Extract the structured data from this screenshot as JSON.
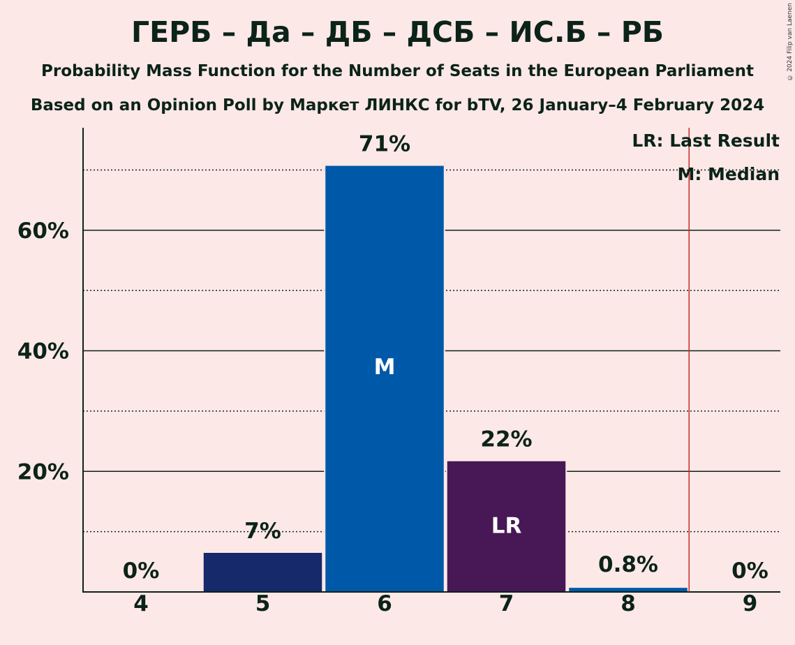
{
  "title": "ГЕРБ – Да – ДБ – ДСБ – ИС.Б – РБ",
  "subtitle": "Probability Mass Function for the Number of Seats in the European Parliament",
  "subtitle2": "Based on an Opinion Poll by Маркет ЛИНКС for bTV, 26 January–4 February 2024",
  "copyright": "© 2024 Filip van Laenen",
  "legend": {
    "last_result": "LR: Last Result",
    "median": "M: Median"
  },
  "chart_data": {
    "type": "bar",
    "categories": [
      "4",
      "5",
      "6",
      "7",
      "8",
      "9"
    ],
    "values": [
      0,
      6.6,
      70.8,
      21.8,
      0.8,
      0
    ],
    "value_labels": [
      "0%",
      "7%",
      "71%",
      "22%",
      "0.8%",
      "0%"
    ],
    "bar_colors": [
      "#15296b",
      "#15296b",
      "#0059a8",
      "#481756",
      "#0059a8",
      "#0059a8"
    ],
    "bar_marks": [
      "",
      "",
      "M",
      "LR",
      "",
      ""
    ],
    "ylim": [
      0,
      77
    ],
    "yticks": [
      20,
      40,
      60
    ],
    "ytick_labels": [
      "20%",
      "40%",
      "60%"
    ],
    "minor_gridlines": [
      10,
      30,
      50,
      70
    ],
    "last_result_after_category": "8",
    "last_result_line_color": "#c62828",
    "grid": true,
    "legend_position": "top-right"
  }
}
